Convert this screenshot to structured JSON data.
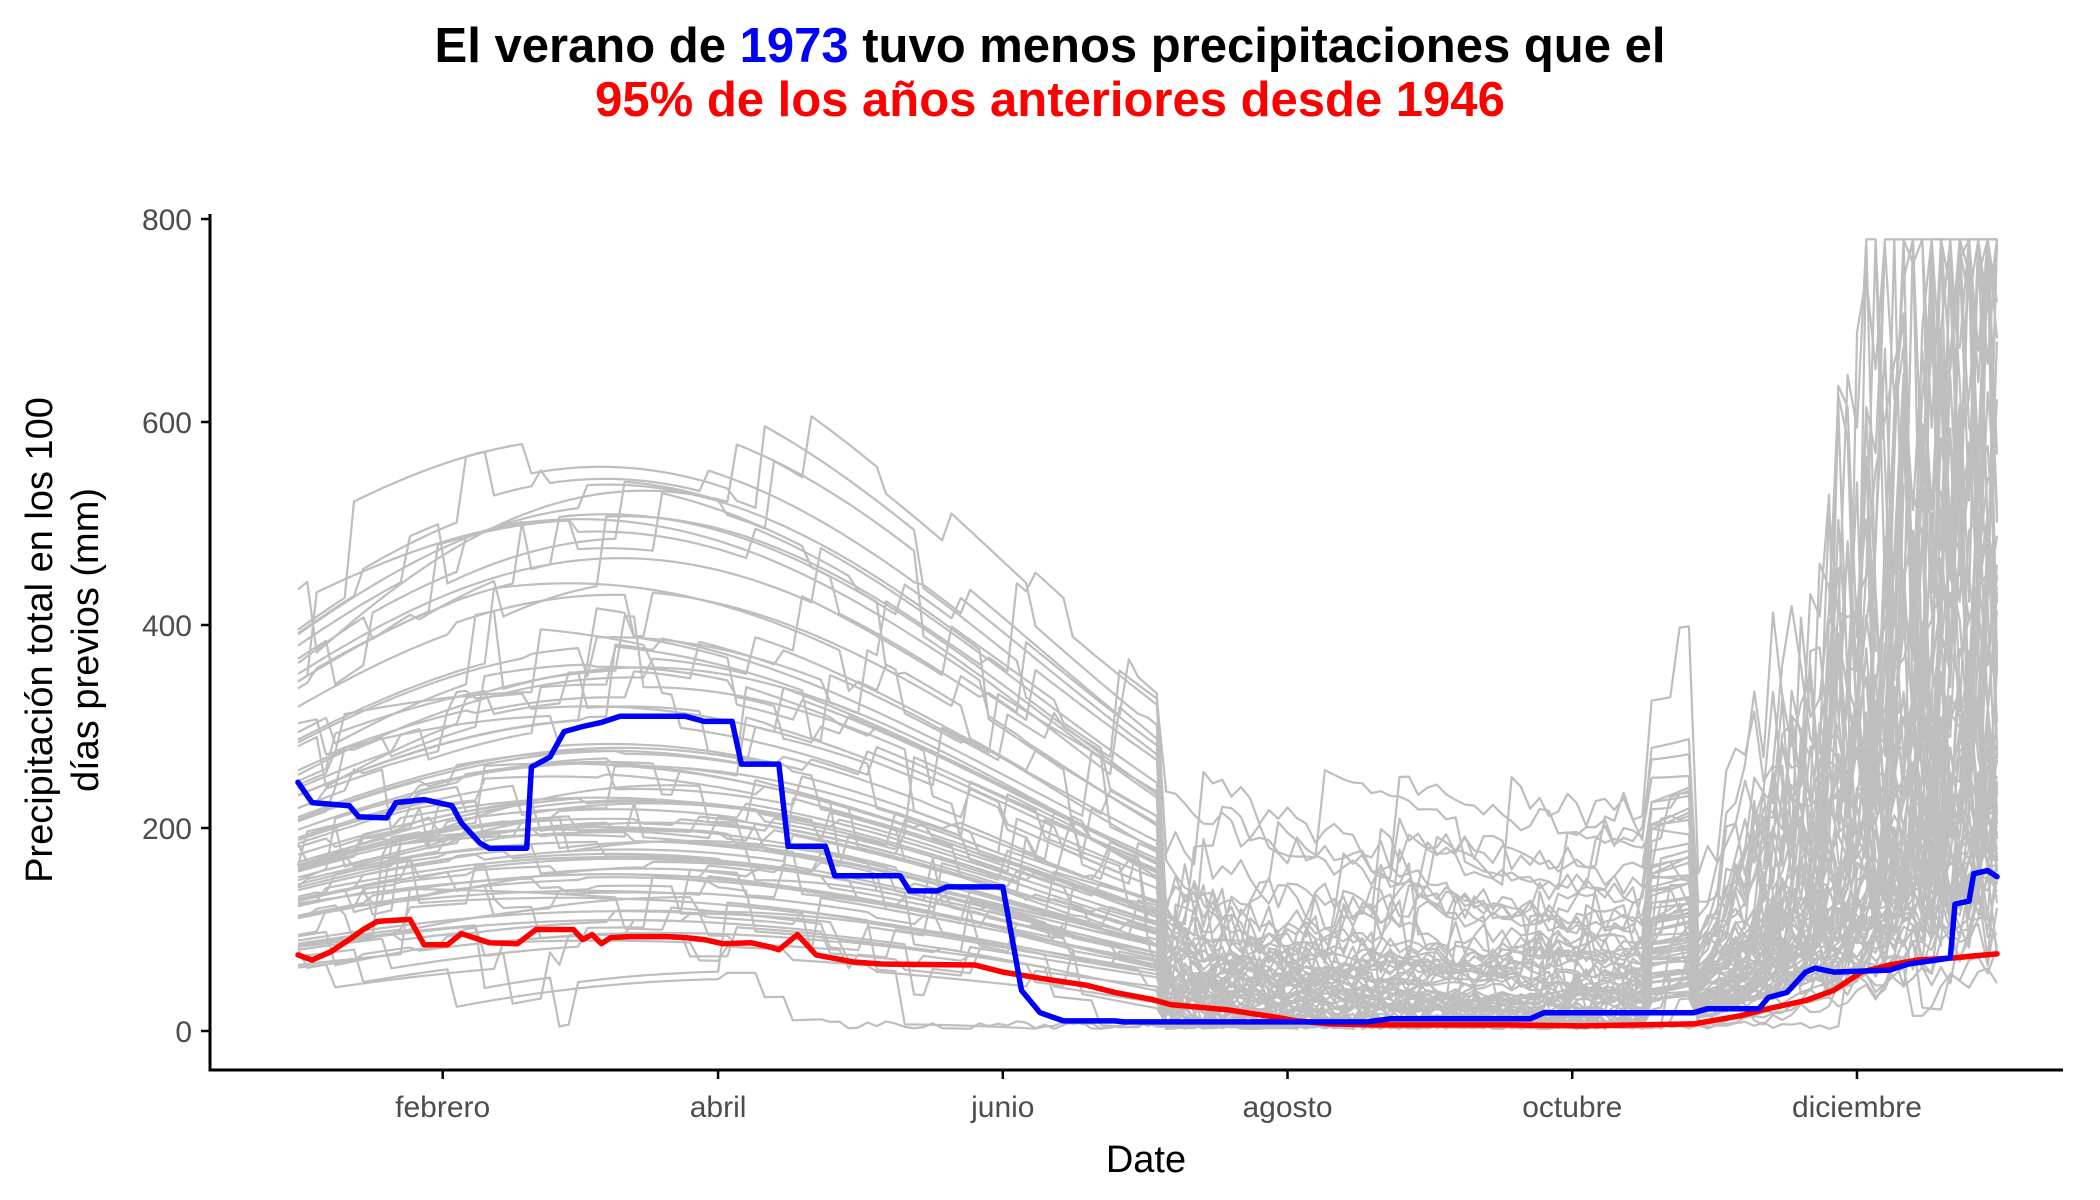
{
  "chart_data": {
    "type": "line",
    "title": {
      "line1": [
        {
          "text": "El verano de ",
          "color": "#000000"
        },
        {
          "text": "1973",
          "color": "#0000FF"
        },
        {
          "text": " tuvo menos precipitaciones que el",
          "color": "#000000"
        }
      ],
      "line2": "95% de los años anteriores desde 1946",
      "line2_color": "#FF0000"
    },
    "xlabel": "Date",
    "ylabel": [
      "Precipitación total en los 100",
      "días previos (mm)"
    ],
    "ylim": [
      0,
      800
    ],
    "yticks": [
      0,
      200,
      400,
      600,
      800
    ],
    "xlim": [
      1,
      365
    ],
    "xticks": [
      {
        "label": "febrero",
        "day": 32
      },
      {
        "label": "abril",
        "day": 91
      },
      {
        "label": "junio",
        "day": 152
      },
      {
        "label": "agosto",
        "day": 213
      },
      {
        "label": "octubre",
        "day": 274
      },
      {
        "label": "diciembre",
        "day": 335
      }
    ],
    "grid": false,
    "legend": "none",
    "colors": {
      "background_years": "#BEBEBE",
      "highlight_year": "#0000FF",
      "percentile_line": "#FF0000",
      "axis": "#000000",
      "tick_label": "#4D4D4D"
    },
    "series": [
      {
        "name": "1973",
        "role": "highlight",
        "points": [
          [
            1,
            245
          ],
          [
            4,
            225
          ],
          [
            12,
            222
          ],
          [
            14,
            211
          ],
          [
            20,
            210
          ],
          [
            22,
            225
          ],
          [
            28,
            228
          ],
          [
            34,
            222
          ],
          [
            36,
            205
          ],
          [
            40,
            185
          ],
          [
            42,
            180
          ],
          [
            50,
            180
          ],
          [
            51,
            260
          ],
          [
            55,
            270
          ],
          [
            58,
            295
          ],
          [
            62,
            300
          ],
          [
            66,
            304
          ],
          [
            70,
            310
          ],
          [
            84,
            310
          ],
          [
            88,
            305
          ],
          [
            94,
            305
          ],
          [
            96,
            263
          ],
          [
            104,
            263
          ],
          [
            106,
            182
          ],
          [
            114,
            182
          ],
          [
            116,
            153
          ],
          [
            130,
            153
          ],
          [
            132,
            138
          ],
          [
            138,
            138
          ],
          [
            140,
            142
          ],
          [
            152,
            142
          ],
          [
            156,
            40
          ],
          [
            160,
            18
          ],
          [
            165,
            10
          ],
          [
            176,
            10
          ],
          [
            178,
            9
          ],
          [
            230,
            9
          ],
          [
            235,
            12
          ],
          [
            265,
            12
          ],
          [
            268,
            18
          ],
          [
            300,
            18
          ],
          [
            303,
            22
          ],
          [
            314,
            22
          ],
          [
            316,
            33
          ],
          [
            320,
            38
          ],
          [
            324,
            58
          ],
          [
            326,
            62
          ],
          [
            330,
            58
          ],
          [
            342,
            60
          ],
          [
            346,
            66
          ],
          [
            352,
            70
          ],
          [
            355,
            72
          ],
          [
            356,
            125
          ],
          [
            359,
            128
          ],
          [
            360,
            155
          ],
          [
            363,
            158
          ],
          [
            365,
            152
          ]
        ]
      },
      {
        "name": "95%",
        "role": "percentile",
        "points": [
          [
            1,
            75
          ],
          [
            4,
            70
          ],
          [
            8,
            78
          ],
          [
            12,
            90
          ],
          [
            15,
            100
          ],
          [
            18,
            108
          ],
          [
            25,
            110
          ],
          [
            28,
            85
          ],
          [
            33,
            85
          ],
          [
            36,
            96
          ],
          [
            42,
            87
          ],
          [
            48,
            86
          ],
          [
            52,
            100
          ],
          [
            60,
            100
          ],
          [
            62,
            90
          ],
          [
            64,
            95
          ],
          [
            66,
            86
          ],
          [
            68,
            92
          ],
          [
            72,
            93
          ],
          [
            80,
            93
          ],
          [
            84,
            92
          ],
          [
            88,
            90
          ],
          [
            92,
            86
          ],
          [
            98,
            87
          ],
          [
            102,
            83
          ],
          [
            104,
            80
          ],
          [
            108,
            95
          ],
          [
            112,
            75
          ],
          [
            120,
            68
          ],
          [
            126,
            66
          ],
          [
            146,
            65
          ],
          [
            152,
            58
          ],
          [
            160,
            52
          ],
          [
            170,
            45
          ],
          [
            176,
            38
          ],
          [
            184,
            31
          ],
          [
            188,
            26
          ],
          [
            200,
            21
          ],
          [
            210,
            14
          ],
          [
            215,
            10
          ],
          [
            222,
            7
          ],
          [
            232,
            6
          ],
          [
            240,
            6
          ],
          [
            260,
            6
          ],
          [
            276,
            5
          ],
          [
            300,
            7
          ],
          [
            310,
            15
          ],
          [
            316,
            22
          ],
          [
            324,
            30
          ],
          [
            330,
            40
          ],
          [
            336,
            58
          ],
          [
            342,
            65
          ],
          [
            348,
            70
          ],
          [
            356,
            72
          ],
          [
            360,
            74
          ],
          [
            365,
            76
          ]
        ]
      }
    ]
  }
}
